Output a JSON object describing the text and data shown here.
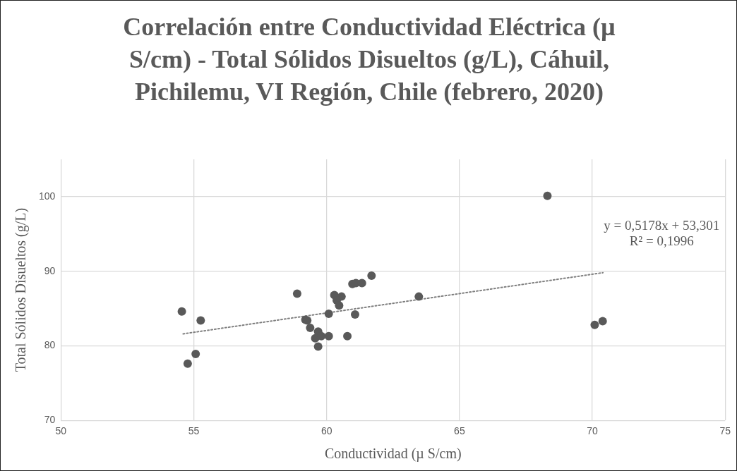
{
  "chart_data": {
    "type": "scatter",
    "title": "Correlación entre Conductividad Eléctrica (µ S/cm) - Total Sólidos Disueltos (g/L), Cáhuil, Pichilemu, VI Región, Chile (febrero, 2020)",
    "xlabel": "Conductividad (µ S/cm)",
    "ylabel": "Total Sólidos Disueltos (g/L)",
    "xlim": [
      50,
      75
    ],
    "xticks": [
      50,
      55,
      60,
      65,
      70,
      75
    ],
    "ylim": [
      70,
      105
    ],
    "yticks": [
      70,
      80,
      90,
      100
    ],
    "grid": true,
    "legend": false,
    "marker": "circle",
    "series": [
      {
        "color": "#595959",
        "x": [
          54.55,
          55.26,
          55.07,
          54.77,
          58.89,
          61.69,
          60.97,
          61.1,
          61.33,
          63.47,
          60.29,
          60.56,
          60.38,
          60.47,
          60.08,
          61.07,
          59.2,
          59.27,
          59.38,
          59.68,
          59.57,
          59.8,
          60.08,
          60.78,
          59.68,
          68.31,
          70.09,
          70.39
        ],
        "values": [
          84.6,
          83.4,
          78.9,
          77.6,
          87.0,
          89.4,
          88.3,
          88.4,
          88.4,
          86.6,
          86.8,
          86.6,
          86.1,
          85.4,
          84.3,
          84.2,
          83.5,
          83.4,
          82.4,
          81.9,
          81.0,
          81.3,
          81.3,
          81.3,
          79.9,
          100.1,
          82.8,
          83.3
        ]
      },
      {
        "type": "line",
        "color": "#7f7f7f",
        "line_style": "dotted",
        "marker": "none",
        "x": [
          54.6,
          70.4
        ],
        "values": [
          81.6,
          89.8
        ]
      }
    ],
    "annotations": [
      "y = 0,5178x + 53,301",
      "R² = 0,1996"
    ]
  }
}
